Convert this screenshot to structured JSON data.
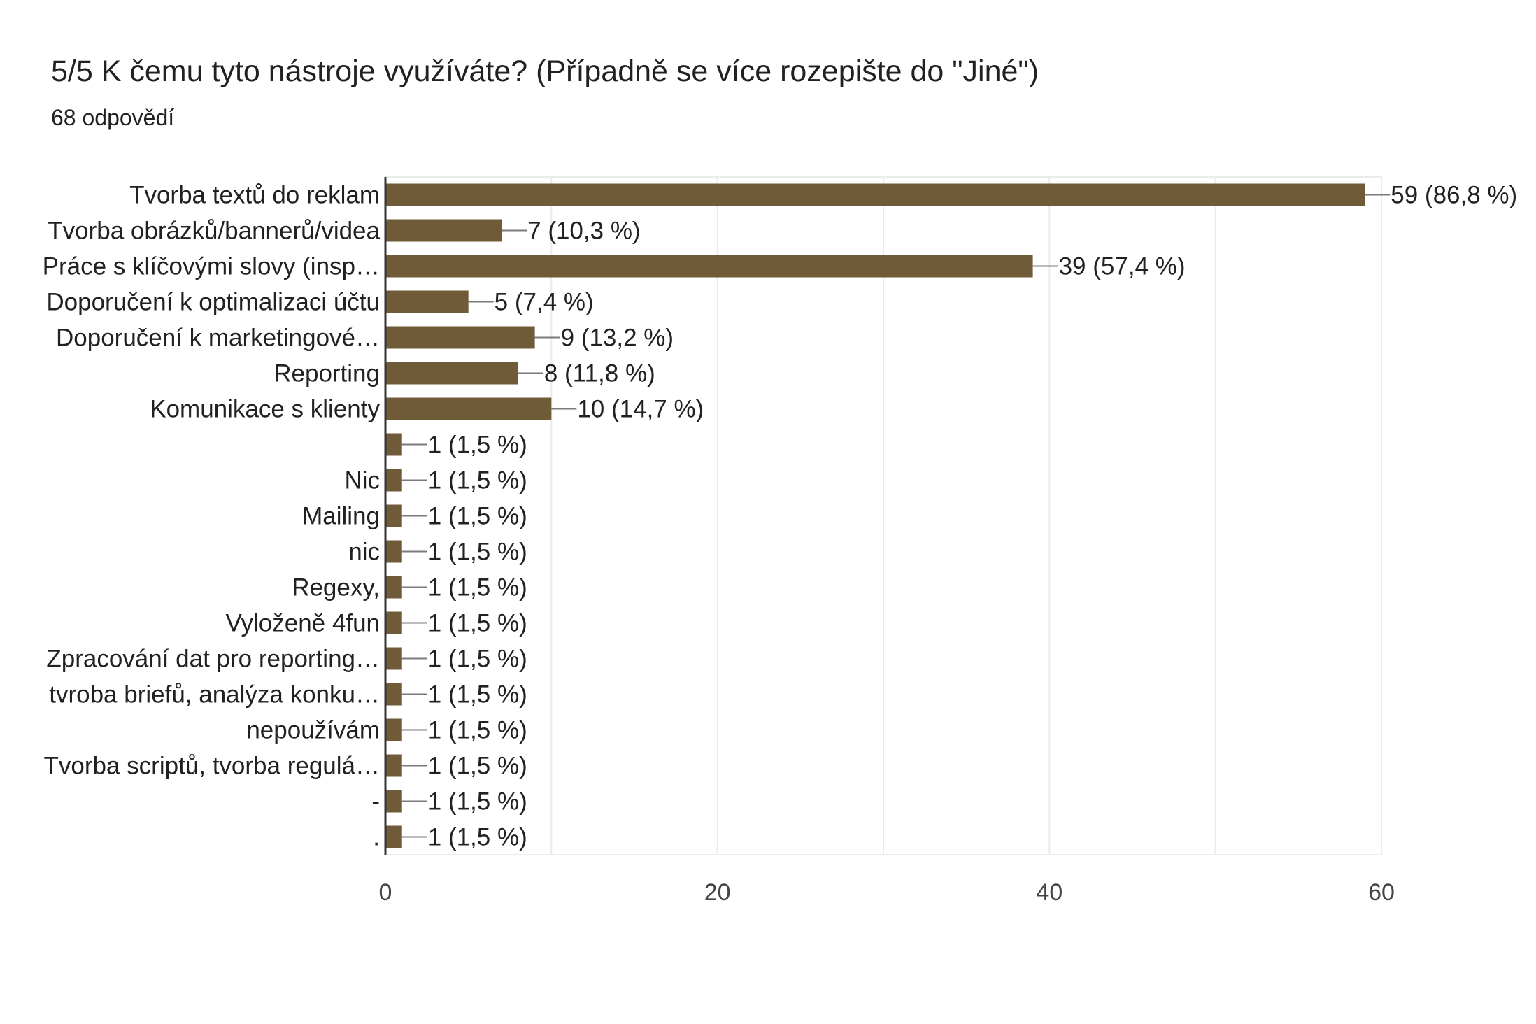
{
  "header": {
    "title": "5/5 K čemu tyto nástroje využíváte?  (Případně se více rozepište do \"Jiné\")",
    "subtitle": "68 odpovědí"
  },
  "colors": {
    "bar": "#705b38",
    "grid": "#ebebeb",
    "axis": "#333333",
    "text": "#212121",
    "tick_text": "#444444"
  },
  "chart_data": {
    "type": "bar",
    "orientation": "horizontal",
    "categories": [
      "Tvorba textů do reklam",
      "Tvorba obrázků/bannerů/videa",
      "Práce s klíčovými slovy (insp…",
      "Doporučení k optimalizaci účtu",
      "Doporučení k marketingové…",
      "Reporting",
      "Komunikace s klienty",
      "",
      "Nic",
      "Mailing",
      "nic",
      "Regexy,",
      "Vyloženě 4fun",
      "Zpracování dat pro reporting…",
      "tvroba briefů, analýza konku…",
      "nepoužívám",
      "Tvorba scriptů, tvorba regulá…",
      "-",
      "."
    ],
    "values": [
      59,
      7,
      39,
      5,
      9,
      8,
      10,
      1,
      1,
      1,
      1,
      1,
      1,
      1,
      1,
      1,
      1,
      1,
      1
    ],
    "data_labels": [
      "59 (86,8 %)",
      "7 (10,3 %)",
      "39 (57,4 %)",
      "5 (7,4 %)",
      "9 (13,2 %)",
      "8 (11,8 %)",
      "10 (14,7 %)",
      "1 (1,5 %)",
      "1 (1,5 %)",
      "1 (1,5 %)",
      "1 (1,5 %)",
      "1 (1,5 %)",
      "1 (1,5 %)",
      "1 (1,5 %)",
      "1 (1,5 %)",
      "1 (1,5 %)",
      "1 (1,5 %)",
      "1 (1,5 %)",
      "1 (1,5 %)"
    ],
    "xlim": [
      0,
      60
    ],
    "x_ticks": [
      0,
      20,
      40,
      60
    ],
    "x_tick_labels": [
      "0",
      "20",
      "40",
      "60"
    ],
    "x_minor_gridlines": [
      10,
      30,
      50
    ],
    "grid": true,
    "legend": "none"
  }
}
